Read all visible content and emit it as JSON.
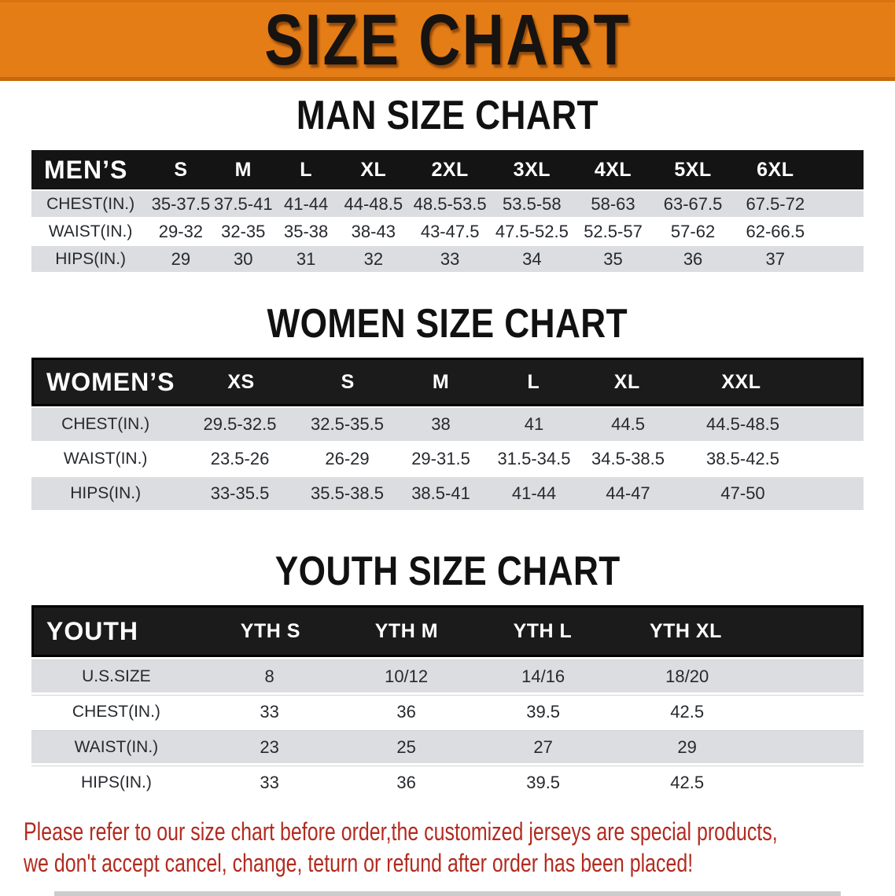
{
  "banner": {
    "title": "SIZE CHART"
  },
  "colors": {
    "banner-orange": "#e57d17",
    "table-header-black": "#141414",
    "row-gray": "#dcdde0",
    "disclaimer-red": "#b22b20"
  },
  "sections": [
    {
      "heading": "MAN SIZE CHART",
      "table": {
        "label": "MEN’S",
        "sizes": [
          "S",
          "M",
          "L",
          "XL",
          "2XL",
          "3XL",
          "4XL",
          "5XL",
          "6XL"
        ],
        "rows": [
          {
            "label": "CHEST(IN.)",
            "values": [
              "35-37.5",
              "37.5-41",
              "41-44",
              "44-48.5",
              "48.5-53.5",
              "53.5-58",
              "58-63",
              "63-67.5",
              "67.5-72"
            ]
          },
          {
            "label": "WAIST(IN.)",
            "values": [
              "29-32",
              "32-35",
              "35-38",
              "38-43",
              "43-47.5",
              "47.5-52.5",
              "52.5-57",
              "57-62",
              "62-66.5"
            ]
          },
          {
            "label": "HIPS(IN.)",
            "values": [
              "29",
              "30",
              "31",
              "32",
              "33",
              "34",
              "35",
              "36",
              "37"
            ]
          }
        ]
      }
    },
    {
      "heading": "WOMEN SIZE CHART",
      "table": {
        "label": "WOMEN’S",
        "sizes": [
          "XS",
          "S",
          "M",
          "L",
          "XL",
          "XXL"
        ],
        "rows": [
          {
            "label": "CHEST(IN.)",
            "values": [
              "29.5-32.5",
              "32.5-35.5",
              "38",
              "41",
              "44.5",
              "44.5-48.5"
            ]
          },
          {
            "label": "WAIST(IN.)",
            "values": [
              "23.5-26",
              "26-29",
              "29-31.5",
              "31.5-34.5",
              "34.5-38.5",
              "38.5-42.5"
            ]
          },
          {
            "label": "HIPS(IN.)",
            "values": [
              "33-35.5",
              "35.5-38.5",
              "38.5-41",
              "41-44",
              "44-47",
              "47-50"
            ]
          }
        ]
      }
    },
    {
      "heading": "YOUTH SIZE CHART",
      "table": {
        "label": "YOUTH",
        "sizes": [
          "YTH S",
          "YTH M",
          "YTH L",
          "YTH XL"
        ],
        "rows": [
          {
            "label": "U.S.SIZE",
            "values": [
              "8",
              "10/12",
              "14/16",
              "18/20"
            ]
          },
          {
            "label": "CHEST(IN.)",
            "values": [
              "33",
              "36",
              "39.5",
              "42.5"
            ]
          },
          {
            "label": "WAIST(IN.)",
            "values": [
              "23",
              "25",
              "27",
              "29"
            ]
          },
          {
            "label": "HIPS(IN.)",
            "values": [
              "33",
              "36",
              "39.5",
              "42.5"
            ]
          }
        ]
      }
    }
  ],
  "disclaimer": {
    "line1": "Please refer to our size chart before order,the customized jerseys are special products,",
    "line2": "we don't accept cancel, change, teturn or refund after order has been placed!"
  }
}
